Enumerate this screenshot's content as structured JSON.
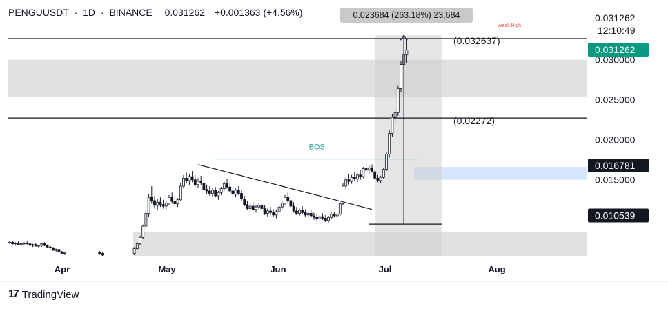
{
  "header": {
    "symbol": "PENGUUSDT",
    "interval": "1D",
    "exchange": "BINANCE",
    "last": "0.031262",
    "change": "+0.001363 (+4.56%)",
    "separator": "·"
  },
  "measure": {
    "text": "0.023684 (263.18%) 23,684"
  },
  "footer": {
    "brand": "TradingView",
    "logo_text": "17"
  },
  "colors": {
    "up": "#131722",
    "down": "#131722",
    "zone": "#dcdcdc",
    "measure_zone": "#d0d0d0",
    "bos": "#26a69a",
    "weak_high": "#ef5350",
    "blue_zone": "#cfe0fb",
    "last_badge": "#089981"
  },
  "chart_data": {
    "type": "candlestick",
    "title": "",
    "x_ticks": [
      "Apr",
      "May",
      "Jun",
      "Jul",
      "Aug"
    ],
    "y_ticks": [
      "0.030000",
      "0.025000",
      "0.020000",
      "0.015000"
    ],
    "y_range": [
      0.0055,
      0.0335
    ],
    "price_labels": {
      "top_value": "0.031262",
      "countdown": "12:10:49",
      "last_price": "0.031262",
      "support_a": "0.016781",
      "support_b": "0.010539"
    },
    "levels": [
      {
        "label": "(0.032637)",
        "value": 0.032637
      },
      {
        "label": "(0.02272)",
        "value": 0.02272
      }
    ],
    "annotations": {
      "bos": "BOS",
      "weak_high": "Weak High"
    },
    "zones": [
      {
        "name": "upper-supply",
        "from": 0.0253,
        "to": 0.03
      },
      {
        "name": "demand",
        "from": 0.0055,
        "to": 0.0085
      },
      {
        "name": "order-block",
        "from": 0.015,
        "to": 0.0166
      }
    ],
    "bos_level": 0.0176,
    "trendline": [
      {
        "i": 65,
        "v": 0.0169
      },
      {
        "i": 125,
        "v": 0.0113
      }
    ],
    "candles": [
      [
        0.0072,
        0.0074,
        0.007,
        0.0072
      ],
      [
        0.0072,
        0.0073,
        0.0069,
        0.007
      ],
      [
        0.007,
        0.0072,
        0.0068,
        0.0071
      ],
      [
        0.0071,
        0.0073,
        0.0069,
        0.0069
      ],
      [
        0.0069,
        0.0071,
        0.0067,
        0.007
      ],
      [
        0.007,
        0.0072,
        0.0068,
        0.0071
      ],
      [
        0.0071,
        0.0073,
        0.0069,
        0.007
      ],
      [
        0.007,
        0.0071,
        0.0067,
        0.0068
      ],
      [
        0.0068,
        0.007,
        0.0066,
        0.0069
      ],
      [
        0.0069,
        0.0071,
        0.0067,
        0.0067
      ],
      [
        0.0067,
        0.0069,
        0.0065,
        0.0068
      ],
      [
        0.0068,
        0.007,
        0.0066,
        0.007
      ],
      [
        0.007,
        0.0072,
        0.0067,
        0.0068
      ],
      [
        0.0068,
        0.0069,
        0.0065,
        0.0066
      ],
      [
        0.0066,
        0.0068,
        0.0063,
        0.0065
      ],
      [
        0.0065,
        0.0066,
        0.0061,
        0.0062
      ],
      [
        0.0062,
        0.0064,
        0.006,
        0.0063
      ],
      [
        0.0063,
        0.0064,
        0.0059,
        0.006
      ],
      [
        0.006,
        0.0061,
        0.0057,
        0.0058
      ],
      [
        0.0058,
        0.006,
        0.0056,
        0.0059
      ],
      null,
      null,
      null,
      null,
      null,
      null,
      null,
      null,
      null,
      null,
      null,
      [
        0.0059,
        0.0061,
        0.0056,
        0.0058
      ],
      [
        0.0058,
        0.006,
        0.0055,
        0.0056
      ],
      null,
      null,
      null,
      null,
      null,
      null,
      null,
      null,
      null,
      null,
      [
        0.0058,
        0.0066,
        0.0056,
        0.0064
      ],
      [
        0.0064,
        0.0072,
        0.0062,
        0.007
      ],
      [
        0.007,
        0.008,
        0.0068,
        0.0078
      ],
      [
        0.0078,
        0.0094,
        0.0076,
        0.0092
      ],
      [
        0.0092,
        0.0112,
        0.009,
        0.0108
      ],
      [
        0.0108,
        0.0132,
        0.0104,
        0.0128
      ],
      [
        0.0128,
        0.0142,
        0.012,
        0.0124
      ],
      [
        0.0124,
        0.013,
        0.0114,
        0.0118
      ],
      [
        0.0118,
        0.0126,
        0.0112,
        0.0122
      ],
      [
        0.0122,
        0.0128,
        0.0116,
        0.0119
      ],
      [
        0.0119,
        0.0125,
        0.0114,
        0.0117
      ],
      [
        0.0117,
        0.0124,
        0.0113,
        0.0121
      ],
      [
        0.0121,
        0.0131,
        0.0118,
        0.0128
      ],
      [
        0.0128,
        0.0134,
        0.012,
        0.0123
      ],
      [
        0.0123,
        0.0129,
        0.0117,
        0.012
      ],
      [
        0.012,
        0.0127,
        0.0116,
        0.0125
      ],
      [
        0.0125,
        0.0146,
        0.0123,
        0.0142
      ],
      [
        0.0142,
        0.0156,
        0.0139,
        0.0152
      ],
      [
        0.0152,
        0.0159,
        0.0146,
        0.0149
      ],
      [
        0.0149,
        0.0157,
        0.0143,
        0.0154
      ],
      [
        0.0154,
        0.0161,
        0.0147,
        0.015
      ],
      [
        0.015,
        0.0156,
        0.0141,
        0.0144
      ],
      [
        0.0144,
        0.0152,
        0.014,
        0.0148
      ],
      [
        0.0148,
        0.0155,
        0.0143,
        0.0146
      ],
      [
        0.0146,
        0.015,
        0.0136,
        0.0138
      ],
      [
        0.0138,
        0.0144,
        0.0132,
        0.0136
      ],
      [
        0.0136,
        0.0142,
        0.013,
        0.0133
      ],
      [
        0.0133,
        0.014,
        0.0129,
        0.0137
      ],
      [
        0.0137,
        0.0141,
        0.0128,
        0.013
      ],
      [
        0.013,
        0.0136,
        0.0125,
        0.0134
      ],
      [
        0.0134,
        0.0141,
        0.0131,
        0.0139
      ],
      [
        0.0139,
        0.0148,
        0.0136,
        0.0145
      ],
      [
        0.0145,
        0.0151,
        0.0139,
        0.0141
      ],
      [
        0.0141,
        0.0146,
        0.0134,
        0.0136
      ],
      [
        0.0136,
        0.014,
        0.013,
        0.0132
      ],
      [
        0.0132,
        0.0139,
        0.0128,
        0.0137
      ],
      [
        0.0137,
        0.0142,
        0.0131,
        0.0133
      ],
      [
        0.0133,
        0.0137,
        0.0124,
        0.0126
      ],
      [
        0.0126,
        0.013,
        0.0117,
        0.0119
      ],
      [
        0.0119,
        0.0124,
        0.0112,
        0.0114
      ],
      [
        0.0114,
        0.012,
        0.011,
        0.0117
      ],
      [
        0.0117,
        0.0122,
        0.0111,
        0.0113
      ],
      [
        0.0113,
        0.0119,
        0.0109,
        0.0116
      ],
      [
        0.0116,
        0.0121,
        0.0112,
        0.0118
      ],
      [
        0.0118,
        0.0122,
        0.0112,
        0.0114
      ],
      [
        0.0114,
        0.0118,
        0.0106,
        0.0108
      ],
      [
        0.0108,
        0.0114,
        0.0104,
        0.0111
      ],
      [
        0.0111,
        0.0116,
        0.0106,
        0.0109
      ],
      [
        0.0109,
        0.0113,
        0.0104,
        0.0106
      ],
      [
        0.0106,
        0.0112,
        0.0102,
        0.011
      ],
      [
        0.011,
        0.0118,
        0.0108,
        0.0116
      ],
      [
        0.0116,
        0.0124,
        0.0113,
        0.0121
      ],
      [
        0.0121,
        0.0131,
        0.0118,
        0.0128
      ],
      [
        0.0128,
        0.0134,
        0.0121,
        0.0124
      ],
      [
        0.0124,
        0.0128,
        0.0115,
        0.0117
      ],
      [
        0.0117,
        0.0122,
        0.0109,
        0.0111
      ],
      [
        0.0111,
        0.0116,
        0.0106,
        0.0108
      ],
      [
        0.0108,
        0.0114,
        0.0105,
        0.0112
      ],
      [
        0.0112,
        0.0117,
        0.0107,
        0.0109
      ],
      [
        0.0109,
        0.0113,
        0.0104,
        0.0106
      ],
      [
        0.0106,
        0.0111,
        0.0102,
        0.0108
      ],
      [
        0.0108,
        0.0112,
        0.0103,
        0.0105
      ],
      [
        0.0105,
        0.0109,
        0.01,
        0.0103
      ],
      [
        0.0103,
        0.0107,
        0.0099,
        0.0101
      ],
      [
        0.0101,
        0.0106,
        0.0098,
        0.0104
      ],
      [
        0.0104,
        0.0108,
        0.01,
        0.0102
      ],
      [
        0.0102,
        0.0106,
        0.0097,
        0.0099
      ],
      [
        0.0099,
        0.0105,
        0.0096,
        0.0103
      ],
      [
        0.0103,
        0.0109,
        0.0101,
        0.0107
      ],
      [
        0.0107,
        0.011,
        0.0103,
        0.0105
      ],
      [
        0.0105,
        0.0109,
        0.0102,
        0.0107
      ],
      [
        0.0107,
        0.0122,
        0.0105,
        0.012
      ],
      [
        0.012,
        0.0146,
        0.0118,
        0.0142
      ],
      [
        0.0142,
        0.0154,
        0.0138,
        0.015
      ],
      [
        0.015,
        0.0157,
        0.0144,
        0.0148
      ],
      [
        0.0148,
        0.0156,
        0.0145,
        0.0153
      ],
      [
        0.0153,
        0.016,
        0.0148,
        0.0151
      ],
      [
        0.0151,
        0.0158,
        0.0147,
        0.0156
      ],
      [
        0.0156,
        0.0162,
        0.015,
        0.0154
      ],
      [
        0.0154,
        0.0166,
        0.0152,
        0.0164
      ],
      [
        0.0164,
        0.017,
        0.0159,
        0.0162
      ],
      [
        0.0162,
        0.0168,
        0.0157,
        0.0165
      ],
      [
        0.0165,
        0.0169,
        0.0159,
        0.016
      ],
      [
        0.016,
        0.0163,
        0.015,
        0.0152
      ],
      [
        0.0152,
        0.0156,
        0.0147,
        0.0149
      ],
      [
        0.0149,
        0.0155,
        0.0146,
        0.0153
      ],
      [
        0.0153,
        0.0165,
        0.0151,
        0.0163
      ],
      [
        0.0163,
        0.0185,
        0.0161,
        0.0182
      ],
      [
        0.0182,
        0.0212,
        0.0178,
        0.0208
      ],
      [
        0.0208,
        0.0232,
        0.0204,
        0.0228
      ],
      [
        0.0228,
        0.0238,
        0.0222,
        0.0234
      ],
      [
        0.0234,
        0.0268,
        0.023,
        0.0264
      ],
      [
        0.0264,
        0.0298,
        0.026,
        0.0294
      ],
      [
        0.0294,
        0.033,
        0.0288,
        0.0306
      ],
      [
        0.0306,
        0.0326,
        0.0296,
        0.0312
      ]
    ]
  }
}
